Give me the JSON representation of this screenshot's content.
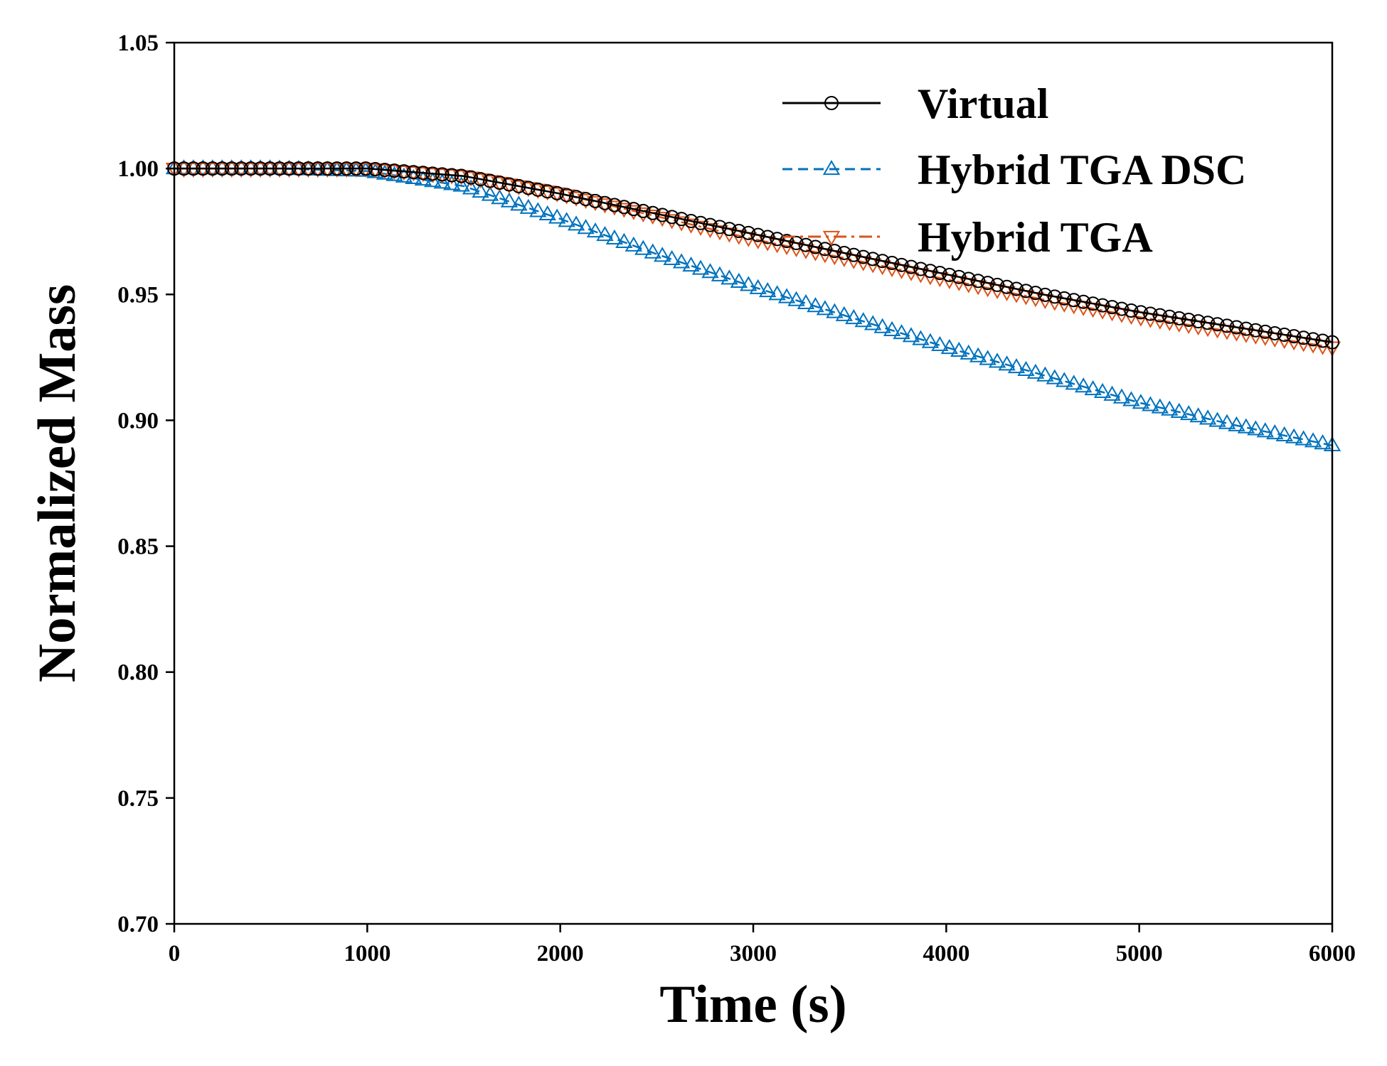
{
  "chart_data": {
    "type": "line",
    "xlabel": "Time (s)",
    "ylabel": "Normalized Mass",
    "xlim": [
      0,
      6000
    ],
    "ylim": [
      0.7,
      1.05
    ],
    "xticks": [
      0,
      1000,
      2000,
      3000,
      4000,
      5000,
      6000
    ],
    "xtick_labels": [
      "0",
      "1000",
      "2000",
      "3000",
      "4000",
      "5000",
      "6000"
    ],
    "yticks": [
      0.7,
      0.75,
      0.8,
      0.85,
      0.9,
      0.95,
      1.0,
      1.05
    ],
    "ytick_labels": [
      "0.70",
      "0.75",
      "0.80",
      "0.85",
      "0.90",
      "0.95",
      "1.00",
      "1.05"
    ],
    "grid": false,
    "legend_position": "top-right",
    "series": [
      {
        "name": "Virtual",
        "color": "#000000",
        "line_style": "solid",
        "marker": "circle",
        "x": [
          0,
          500,
          1000,
          1500,
          2000,
          2500,
          3000,
          3500,
          4000,
          4500,
          5000,
          5500,
          6000
        ],
        "y": [
          1.0,
          1.0,
          1.0,
          0.997,
          0.99,
          0.982,
          0.974,
          0.966,
          0.958,
          0.95,
          0.943,
          0.937,
          0.931
        ]
      },
      {
        "name": "Hybrid TGA DSC",
        "color": "#0072bd",
        "line_style": "dashed",
        "marker": "triangle-up",
        "x": [
          0,
          500,
          1000,
          1500,
          2000,
          2500,
          3000,
          3500,
          4000,
          4500,
          5000,
          5500,
          6000
        ],
        "y": [
          1.0,
          1.0,
          0.999,
          0.993,
          0.98,
          0.966,
          0.953,
          0.941,
          0.929,
          0.918,
          0.907,
          0.898,
          0.89
        ]
      },
      {
        "name": "Hybrid TGA",
        "color": "#d95319",
        "line_style": "dashdot",
        "marker": "triangle-down",
        "x": [
          0,
          500,
          1000,
          1500,
          2000,
          2500,
          3000,
          3500,
          4000,
          4500,
          5000,
          5500,
          6000
        ],
        "y": [
          1.0,
          1.0,
          1.0,
          0.997,
          0.99,
          0.981,
          0.972,
          0.964,
          0.956,
          0.948,
          0.941,
          0.935,
          0.929
        ]
      }
    ]
  }
}
